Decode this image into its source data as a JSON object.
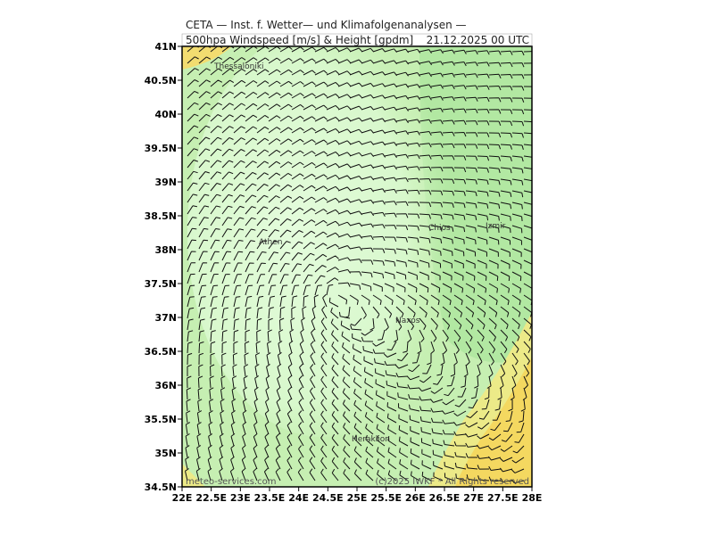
{
  "header": {
    "line1": "CETA — Inst. f. Wetter— und Klimafolgenanalysen —",
    "line2": "500hpa Windspeed [m/s] & Height [gpdm]",
    "date": "21.12.2025 00 UTC"
  },
  "map": {
    "lon_ticks": [
      "22E",
      "22.5E",
      "23E",
      "23.5E",
      "24E",
      "24.5E",
      "25E",
      "25.5E",
      "26E",
      "26.5E",
      "27E",
      "27.5E",
      "28E"
    ],
    "lat_ticks": [
      "41N",
      "40.5N",
      "40N",
      "39.5N",
      "39N",
      "38.5N",
      "38N",
      "37.5N",
      "37N",
      "36.5N",
      "36N",
      "35.5N",
      "35N",
      "34.5N"
    ],
    "cities": [
      "Thessaloniki",
      "Athen",
      "Naxos",
      "Heraklion",
      "Izmir",
      "Chios"
    ]
  },
  "footer": {
    "left": "meteo-services.com",
    "right": "(c)2025 IWKF * All Rights reserved"
  }
}
